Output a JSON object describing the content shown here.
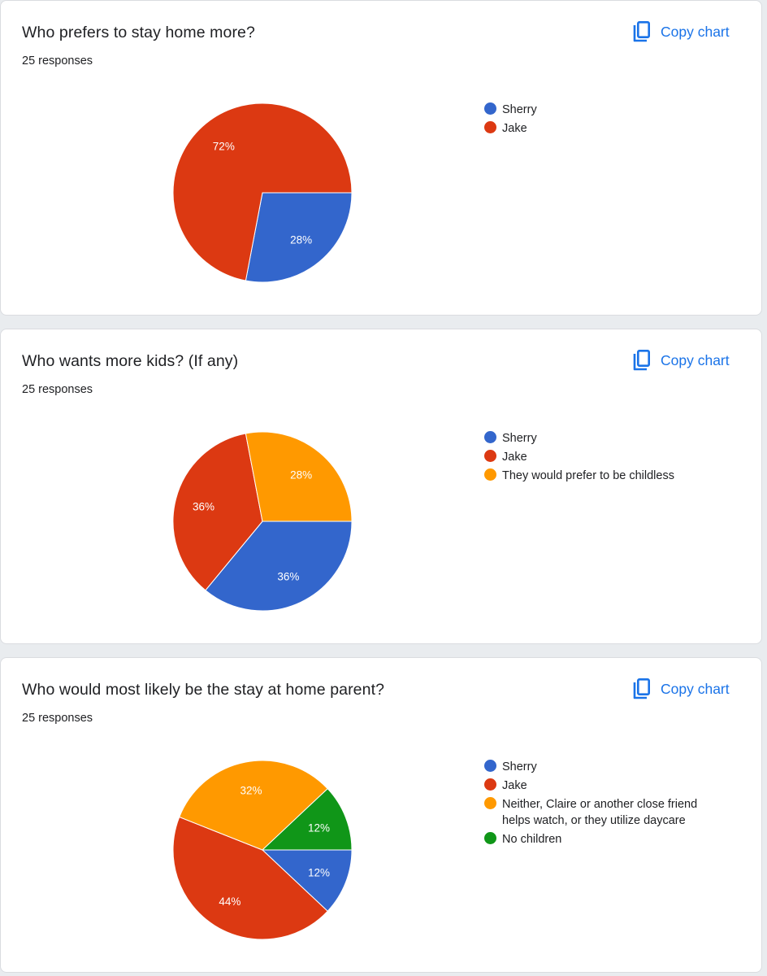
{
  "ui": {
    "copy_label": "Copy chart",
    "copy_icon": "copy-icon",
    "accent_color": "#1a73e8"
  },
  "colors": {
    "blue": "#3366cc",
    "red": "#dc3912",
    "orange": "#ff9900",
    "green": "#109618"
  },
  "chart_data": [
    {
      "type": "pie",
      "title": "Who prefers to stay home more?",
      "responses": "25 responses",
      "legend_position": "right",
      "slices": [
        {
          "name": "Sherry",
          "value": 28,
          "label": "28%",
          "color": "#3366cc"
        },
        {
          "name": "Jake",
          "value": 72,
          "label": "72%",
          "color": "#dc3912"
        }
      ]
    },
    {
      "type": "pie",
      "title": "Who wants more kids? (If any)",
      "responses": "25 responses",
      "legend_position": "right",
      "slices": [
        {
          "name": "Sherry",
          "value": 36,
          "label": "36%",
          "color": "#3366cc"
        },
        {
          "name": "Jake",
          "value": 36,
          "label": "36%",
          "color": "#dc3912"
        },
        {
          "name": "They would prefer to be childless",
          "value": 28,
          "label": "28%",
          "color": "#ff9900"
        }
      ]
    },
    {
      "type": "pie",
      "title": "Who would most likely be the stay at home parent?",
      "responses": "25 responses",
      "legend_position": "right",
      "slices": [
        {
          "name": "Sherry",
          "value": 12,
          "label": "12%",
          "color": "#3366cc"
        },
        {
          "name": "Jake",
          "value": 44,
          "label": "44%",
          "color": "#dc3912"
        },
        {
          "name": "Neither, Claire or another close friend helps watch, or they utilize daycare",
          "value": 32,
          "label": "32%",
          "color": "#ff9900"
        },
        {
          "name": "No children",
          "value": 12,
          "label": "12%",
          "color": "#109618"
        }
      ]
    }
  ]
}
